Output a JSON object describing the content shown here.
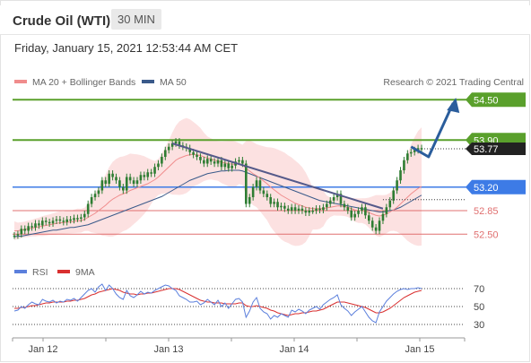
{
  "instrument": "Crude Oil (WTI)",
  "timeframe": "30 MIN",
  "datetime": "Friday, January 15, 2021 12:53:44 AM CET",
  "attribution": "Research © 2021 Trading Central",
  "colors": {
    "ma20": "#f08c8c",
    "ma50": "#3a5a8a",
    "band": "#fbd9d9",
    "resistance": "#5aa02c",
    "support_blue": "#3d7be6",
    "support_red": "#e07070",
    "candle": "#2e7d32",
    "arrow": "#2a5d9c",
    "rsi": "#5b7fdc",
    "rsi_ma": "#d93030"
  },
  "chart_data": [
    {
      "type": "line",
      "title": "",
      "legend": [
        "MA 20 + Bollinger Bands",
        "MA 50"
      ],
      "legend_position": "top-left",
      "ylim": [
        52.25,
        54.65
      ],
      "x_ticks": [
        "Jan 12",
        "Jan 13",
        "Jan 14",
        "Jan 15"
      ],
      "price_levels": [
        {
          "value": 54.5,
          "label": "54.50",
          "kind": "resistance"
        },
        {
          "value": 53.9,
          "label": "53.90",
          "kind": "resistance"
        },
        {
          "value": 53.2,
          "label": "53.20",
          "kind": "support"
        },
        {
          "value": 52.85,
          "label": "52.85",
          "kind": "support"
        },
        {
          "value": 52.5,
          "label": "52.50",
          "kind": "support"
        }
      ],
      "last_price": {
        "value": 53.77,
        "label": "53.77"
      },
      "trendline": {
        "from": {
          "t": 45,
          "p": 53.85
        },
        "to": {
          "t": 105,
          "p": 52.88
        }
      },
      "forecast_arrow": [
        {
          "t": 113,
          "p": 53.8
        },
        {
          "t": 118,
          "p": 53.65
        },
        {
          "t": 125,
          "p": 54.45
        }
      ],
      "price": [
        52.48,
        52.5,
        52.58,
        52.55,
        52.62,
        52.6,
        52.66,
        52.63,
        52.7,
        52.68,
        52.66,
        52.7,
        52.72,
        52.7,
        52.68,
        52.72,
        52.71,
        52.74,
        52.73,
        52.75,
        52.8,
        52.95,
        53.05,
        53.1,
        53.15,
        53.3,
        53.25,
        53.4,
        53.35,
        53.3,
        53.2,
        53.15,
        53.35,
        53.3,
        53.25,
        53.3,
        53.38,
        53.35,
        53.42,
        53.4,
        53.5,
        53.55,
        53.65,
        53.75,
        53.8,
        53.85,
        53.88,
        53.82,
        53.8,
        53.78,
        53.72,
        53.68,
        53.65,
        53.6,
        53.55,
        53.62,
        53.58,
        53.55,
        53.6,
        53.5,
        53.55,
        53.48,
        53.52,
        53.58,
        53.6,
        53.55,
        52.95,
        53.05,
        53.2,
        53.3,
        53.15,
        53.1,
        53.05,
        52.95,
        52.98,
        52.9,
        52.92,
        52.88,
        52.85,
        52.9,
        52.85,
        52.88,
        52.85,
        52.82,
        52.85,
        52.85,
        52.88,
        52.86,
        52.9,
        52.95,
        53.0,
        53.05,
        53.1,
        52.95,
        52.9,
        52.85,
        52.75,
        52.8,
        52.85,
        52.9,
        52.78,
        52.7,
        52.6,
        52.55,
        52.7,
        52.8,
        52.9,
        53.0,
        53.15,
        53.3,
        53.45,
        53.6,
        53.7,
        53.72,
        53.75,
        53.78,
        53.77
      ],
      "ma20": [
        52.55,
        52.55,
        52.56,
        52.57,
        52.58,
        52.59,
        52.6,
        52.61,
        52.62,
        52.63,
        52.64,
        52.65,
        52.66,
        52.67,
        52.67,
        52.68,
        52.68,
        52.69,
        52.7,
        52.7,
        52.72,
        52.75,
        52.78,
        52.81,
        52.85,
        52.89,
        52.93,
        52.98,
        53.02,
        53.05,
        53.08,
        53.1,
        53.12,
        53.15,
        53.17,
        53.19,
        53.21,
        53.23,
        53.25,
        53.28,
        53.31,
        53.35,
        53.4,
        53.45,
        53.5,
        53.55,
        53.6,
        53.63,
        53.65,
        53.67,
        53.68,
        53.69,
        53.68,
        53.67,
        53.65,
        53.63,
        53.62,
        53.6,
        53.59,
        53.57,
        53.56,
        53.55,
        53.54,
        53.54,
        53.55,
        53.53,
        53.48,
        53.44,
        53.4,
        53.37,
        53.33,
        53.29,
        53.25,
        53.2,
        53.16,
        53.12,
        53.08,
        53.05,
        53.02,
        52.99,
        52.96,
        52.94,
        52.92,
        52.9,
        52.89,
        52.88,
        52.88,
        52.88,
        52.88,
        52.89,
        52.9,
        52.91,
        52.92,
        52.92,
        52.91,
        52.9,
        52.88,
        52.86,
        52.85,
        52.85,
        52.84,
        52.82,
        52.8,
        52.78,
        52.77,
        52.78,
        52.8,
        52.83,
        52.86,
        52.9,
        52.95,
        53.0,
        53.05,
        53.1,
        53.14,
        53.18,
        53.21
      ],
      "ma50": [
        52.46,
        52.47,
        52.47,
        52.48,
        52.49,
        52.5,
        52.51,
        52.52,
        52.53,
        52.54,
        52.55,
        52.56,
        52.56,
        52.57,
        52.58,
        52.59,
        52.6,
        52.6,
        52.61,
        52.62,
        52.63,
        52.64,
        52.66,
        52.68,
        52.7,
        52.72,
        52.74,
        52.76,
        52.78,
        52.8,
        52.82,
        52.84,
        52.86,
        52.88,
        52.9,
        52.92,
        52.94,
        52.96,
        52.98,
        53.0,
        53.02,
        53.04,
        53.06,
        53.09,
        53.12,
        53.15,
        53.18,
        53.21,
        53.24,
        53.27,
        53.3,
        53.32,
        53.34,
        53.36,
        53.38,
        53.4,
        53.41,
        53.42,
        53.43,
        53.44,
        53.44,
        53.45,
        53.45,
        53.45,
        53.45,
        53.44,
        53.42,
        53.4,
        53.38,
        53.36,
        53.34,
        53.32,
        53.3,
        53.28,
        53.26,
        53.24,
        53.22,
        53.2,
        53.18,
        53.16,
        53.14,
        53.12,
        53.1,
        53.08,
        53.06,
        53.04,
        53.02,
        53.0,
        52.99,
        52.98,
        52.97,
        52.96,
        52.95,
        52.94,
        52.93,
        52.92,
        52.91,
        52.9,
        52.89,
        52.88,
        52.87,
        52.86,
        52.85,
        52.84,
        52.83,
        52.83,
        52.84,
        52.85,
        52.86,
        52.88,
        52.9,
        52.93,
        52.96,
        52.99,
        53.02,
        53.05,
        53.08
      ]
    },
    {
      "type": "line",
      "legend": [
        "RSI",
        "9MA"
      ],
      "legend_position": "top-left",
      "ylim": [
        20,
        80
      ],
      "y_ticks": [
        70,
        50,
        30
      ],
      "rsi": [
        45,
        46,
        50,
        48,
        52,
        55,
        53,
        52,
        58,
        56,
        55,
        57,
        54,
        56,
        55,
        58,
        57,
        59,
        56,
        60,
        64,
        68,
        70,
        66,
        72,
        75,
        68,
        74,
        70,
        64,
        60,
        58,
        68,
        62,
        60,
        63,
        67,
        64,
        66,
        65,
        68,
        70,
        72,
        74,
        73,
        70,
        68,
        62,
        60,
        58,
        55,
        55,
        56,
        52,
        54,
        58,
        55,
        52,
        57,
        50,
        54,
        48,
        53,
        58,
        59,
        55,
        38,
        45,
        55,
        60,
        48,
        44,
        42,
        36,
        40,
        38,
        42,
        40,
        38,
        46,
        44,
        47,
        45,
        42,
        46,
        48,
        50,
        47,
        52,
        55,
        58,
        60,
        63,
        52,
        48,
        45,
        40,
        44,
        47,
        50,
        44,
        38,
        34,
        32,
        44,
        50,
        56,
        60,
        64,
        67,
        69,
        70,
        69,
        70,
        70,
        71,
        70
      ],
      "rsi_ma": [
        48,
        48,
        49,
        49,
        50,
        51,
        51,
        52,
        53,
        54,
        54,
        55,
        55,
        55,
        55,
        56,
        56,
        57,
        57,
        58,
        59,
        61,
        63,
        64,
        66,
        67,
        68,
        69,
        70,
        69,
        68,
        66,
        65,
        64,
        64,
        63,
        64,
        64,
        65,
        65,
        66,
        67,
        68,
        69,
        70,
        70,
        70,
        69,
        67,
        65,
        63,
        61,
        59,
        57,
        56,
        55,
        55,
        54,
        54,
        54,
        53,
        53,
        53,
        53,
        54,
        54,
        51,
        50,
        50,
        51,
        50,
        49,
        48,
        46,
        45,
        43,
        42,
        41,
        40,
        41,
        42,
        42,
        43,
        43,
        44,
        45,
        45,
        46,
        47,
        49,
        51,
        53,
        55,
        55,
        55,
        54,
        53,
        52,
        51,
        50,
        49,
        47,
        45,
        43,
        43,
        44,
        46,
        48,
        51,
        54,
        57,
        60,
        62,
        64,
        66,
        67,
        68
      ]
    }
  ]
}
